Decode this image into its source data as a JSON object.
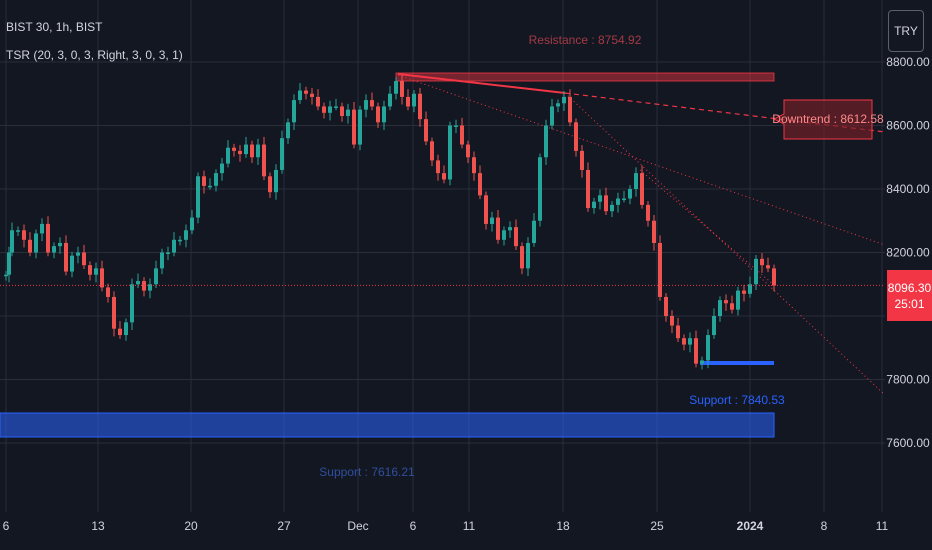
{
  "header": {
    "title": "BIST 30, 1h, BIST",
    "indicator": "TSR (20, 3, 0, 3, Right, 3, 0, 3, 1)"
  },
  "currency": "TRY",
  "last_price": {
    "value": "8096.30",
    "countdown": "25:01"
  },
  "colors": {
    "background": "#131722",
    "up": "#26a69a",
    "down": "#ef5350",
    "resistance": "#f23645",
    "support": "#2962ff",
    "grid": "#2a2e39"
  },
  "annotations": {
    "resistance_label": "Resistance : 8754.92",
    "downtrend_label": "Downtrend : 8612.58",
    "support_label_1": "Support : 7840.53",
    "support_label_2": "Support : 7616.21"
  },
  "chart_data": {
    "type": "candlestick",
    "y_axis": {
      "ticks": [
        "8800.00",
        "8600.00",
        "8400.00",
        "8200.00",
        "7800.00",
        "7600.00"
      ],
      "ylim": [
        7550,
        8880
      ]
    },
    "x_axis": {
      "ticks": [
        "6",
        "13",
        "20",
        "27",
        "Dec",
        "6",
        "11",
        "18",
        "25",
        "2024",
        "8",
        "11"
      ]
    },
    "resistance_level": 8754.92,
    "support_level_1": 7840.53,
    "support_level_2": 7616.21,
    "downtrend_value": 8612.58,
    "last_price": 8096.3,
    "close_path": [
      [
        6,
        8130
      ],
      [
        9,
        8200
      ],
      [
        12,
        8270
      ],
      [
        18,
        8270
      ],
      [
        24,
        8240
      ],
      [
        30,
        8200
      ],
      [
        36,
        8260
      ],
      [
        42,
        8290
      ],
      [
        48,
        8200
      ],
      [
        54,
        8220
      ],
      [
        60,
        8230
      ],
      [
        66,
        8140
      ],
      [
        72,
        8190
      ],
      [
        78,
        8200
      ],
      [
        84,
        8160
      ],
      [
        90,
        8130
      ],
      [
        96,
        8150
      ],
      [
        102,
        8090
      ],
      [
        108,
        8060
      ],
      [
        114,
        7960
      ],
      [
        120,
        7940
      ],
      [
        126,
        7980
      ],
      [
        132,
        8100
      ],
      [
        138,
        8110
      ],
      [
        144,
        8080
      ],
      [
        150,
        8100
      ],
      [
        156,
        8150
      ],
      [
        162,
        8200
      ],
      [
        168,
        8200
      ],
      [
        174,
        8240
      ],
      [
        180,
        8240
      ],
      [
        186,
        8270
      ],
      [
        192,
        8310
      ],
      [
        198,
        8440
      ],
      [
        204,
        8410
      ],
      [
        210,
        8410
      ],
      [
        216,
        8450
      ],
      [
        222,
        8480
      ],
      [
        228,
        8530
      ],
      [
        234,
        8520
      ],
      [
        240,
        8510
      ],
      [
        246,
        8540
      ],
      [
        252,
        8500
      ],
      [
        258,
        8540
      ],
      [
        264,
        8440
      ],
      [
        270,
        8390
      ],
      [
        276,
        8460
      ],
      [
        282,
        8560
      ],
      [
        288,
        8610
      ],
      [
        294,
        8680
      ],
      [
        300,
        8710
      ],
      [
        306,
        8700
      ],
      [
        312,
        8690
      ],
      [
        318,
        8660
      ],
      [
        324,
        8640
      ],
      [
        330,
        8660
      ],
      [
        336,
        8660
      ],
      [
        342,
        8630
      ],
      [
        348,
        8650
      ],
      [
        354,
        8540
      ],
      [
        360,
        8650
      ],
      [
        366,
        8680
      ],
      [
        372,
        8660
      ],
      [
        378,
        8610
      ],
      [
        384,
        8660
      ],
      [
        390,
        8700
      ],
      [
        396,
        8740
      ],
      [
        402,
        8690
      ],
      [
        408,
        8660
      ],
      [
        414,
        8700
      ],
      [
        420,
        8620
      ],
      [
        426,
        8550
      ],
      [
        432,
        8490
      ],
      [
        438,
        8450
      ],
      [
        444,
        8430
      ],
      [
        450,
        8600
      ],
      [
        456,
        8600
      ],
      [
        462,
        8540
      ],
      [
        468,
        8500
      ],
      [
        474,
        8450
      ],
      [
        480,
        8380
      ],
      [
        486,
        8290
      ],
      [
        492,
        8310
      ],
      [
        498,
        8240
      ],
      [
        504,
        8270
      ],
      [
        510,
        8280
      ],
      [
        516,
        8220
      ],
      [
        522,
        8150
      ],
      [
        528,
        8230
      ],
      [
        534,
        8300
      ],
      [
        540,
        8500
      ],
      [
        546,
        8600
      ],
      [
        552,
        8660
      ],
      [
        558,
        8670
      ],
      [
        564,
        8690
      ],
      [
        570,
        8610
      ],
      [
        576,
        8520
      ],
      [
        582,
        8460
      ],
      [
        588,
        8340
      ],
      [
        594,
        8360
      ],
      [
        600,
        8380
      ],
      [
        606,
        8330
      ],
      [
        612,
        8350
      ],
      [
        618,
        8370
      ],
      [
        624,
        8370
      ],
      [
        630,
        8400
      ],
      [
        636,
        8450
      ],
      [
        642,
        8350
      ],
      [
        648,
        8300
      ],
      [
        654,
        8230
      ],
      [
        660,
        8060
      ],
      [
        666,
        8000
      ],
      [
        672,
        7970
      ],
      [
        678,
        7930
      ],
      [
        684,
        7910
      ],
      [
        690,
        7930
      ],
      [
        696,
        7850
      ],
      [
        702,
        7860
      ],
      [
        708,
        7940
      ],
      [
        714,
        8000
      ],
      [
        720,
        8050
      ],
      [
        726,
        8040
      ],
      [
        732,
        8020
      ],
      [
        738,
        8080
      ],
      [
        744,
        8070
      ],
      [
        750,
        8100
      ],
      [
        756,
        8180
      ],
      [
        762,
        8160
      ],
      [
        768,
        8150
      ],
      [
        774,
        8096
      ]
    ]
  }
}
